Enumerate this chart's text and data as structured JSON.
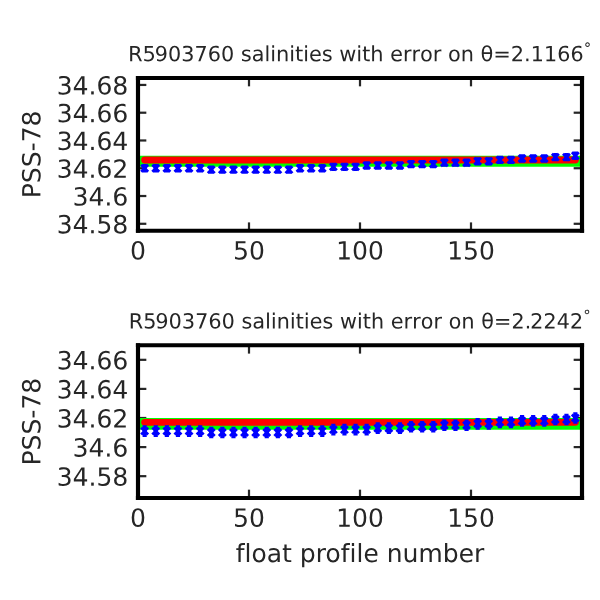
{
  "chart_data": [
    {
      "type": "scatter",
      "title": "R5903760 salinities with error on θ=2.1166$^{°}$",
      "ylabel": "PSS-78",
      "xlim": [
        0,
        200
      ],
      "ylim": [
        34.575,
        34.685
      ],
      "xticks": [
        0,
        50,
        100,
        150
      ],
      "yticks": [
        34.58,
        34.6,
        34.62,
        34.64,
        34.66,
        34.68
      ],
      "grid": false,
      "legend": false,
      "bands": [
        {
          "axis": "y",
          "from": 34.621,
          "to": 34.629,
          "color": "#00ff00"
        }
      ],
      "x": [
        3,
        8,
        13,
        18,
        23,
        28,
        33,
        38,
        43,
        48,
        53,
        58,
        63,
        68,
        73,
        78,
        83,
        88,
        93,
        98,
        103,
        108,
        113,
        118,
        123,
        128,
        133,
        138,
        143,
        148,
        153,
        158,
        163,
        168,
        173,
        178,
        183,
        188,
        193,
        197
      ],
      "series": [
        {
          "type": "line",
          "color": "#ff0000",
          "marker": "none",
          "values": [
            34.626,
            34.626,
            34.626,
            34.626,
            34.626,
            34.626,
            34.626,
            34.626,
            34.626,
            34.626,
            34.626,
            34.626,
            34.626,
            34.626,
            34.626,
            34.626,
            34.626,
            34.626,
            34.626,
            34.626,
            34.626,
            34.626,
            34.626,
            34.626,
            34.626,
            34.626,
            34.626,
            34.626,
            34.626,
            34.626,
            34.626,
            34.626,
            34.626,
            34.626,
            34.626,
            34.626,
            34.626,
            34.626,
            34.626,
            34.626
          ]
        },
        {
          "color": "#0000ff",
          "marker": "cross",
          "values": [
            34.62,
            34.62,
            34.62,
            34.62,
            34.62,
            34.62,
            34.619,
            34.619,
            34.619,
            34.619,
            34.619,
            34.619,
            34.619,
            34.619,
            34.62,
            34.62,
            34.62,
            34.621,
            34.621,
            34.621,
            34.622,
            34.622,
            34.622,
            34.622,
            34.623,
            34.623,
            34.623,
            34.624,
            34.624,
            34.624,
            34.625,
            34.625,
            34.626,
            34.626,
            34.627,
            34.627,
            34.627,
            34.628,
            34.628,
            34.629
          ],
          "errors": [
            0.003,
            0.003,
            0.003,
            0.003,
            0.003,
            0.003,
            0.003,
            0.003,
            0.003,
            0.003,
            0.003,
            0.003,
            0.003,
            0.003,
            0.003,
            0.003,
            0.003,
            0.003,
            0.003,
            0.003,
            0.003,
            0.003,
            0.003,
            0.003,
            0.003,
            0.003,
            0.003,
            0.003,
            0.003,
            0.003,
            0.003,
            0.003,
            0.003,
            0.003,
            0.003,
            0.003,
            0.003,
            0.003,
            0.003,
            0.003
          ]
        }
      ]
    },
    {
      "type": "scatter",
      "title": "R5903760 salinities with error on θ=2.2242$^{°}$",
      "ylabel": "PSS-78",
      "xlabel": "float profile number",
      "xlim": [
        0,
        200
      ],
      "ylim": [
        34.565,
        34.67
      ],
      "xticks": [
        0,
        50,
        100,
        150
      ],
      "yticks": [
        34.58,
        34.6,
        34.62,
        34.64,
        34.66
      ],
      "grid": false,
      "legend": false,
      "bands": [
        {
          "axis": "y",
          "from": 34.612,
          "to": 34.62,
          "color": "#00ff00"
        }
      ],
      "x": [
        3,
        8,
        13,
        18,
        23,
        28,
        33,
        38,
        43,
        48,
        53,
        58,
        63,
        68,
        73,
        78,
        83,
        88,
        93,
        98,
        103,
        108,
        113,
        118,
        123,
        128,
        133,
        138,
        143,
        148,
        153,
        158,
        163,
        168,
        173,
        178,
        183,
        188,
        193,
        197
      ],
      "series": [
        {
          "type": "line",
          "color": "#ff0000",
          "marker": "none",
          "values": [
            34.617,
            34.617,
            34.617,
            34.617,
            34.617,
            34.617,
            34.617,
            34.617,
            34.617,
            34.617,
            34.617,
            34.617,
            34.617,
            34.617,
            34.617,
            34.617,
            34.617,
            34.617,
            34.617,
            34.617,
            34.617,
            34.617,
            34.617,
            34.617,
            34.617,
            34.617,
            34.617,
            34.617,
            34.617,
            34.617,
            34.617,
            34.617,
            34.617,
            34.617,
            34.617,
            34.617,
            34.617,
            34.617,
            34.617,
            34.617
          ]
        },
        {
          "color": "#0000ff",
          "marker": "cross",
          "values": [
            34.611,
            34.611,
            34.611,
            34.611,
            34.611,
            34.611,
            34.61,
            34.61,
            34.61,
            34.61,
            34.61,
            34.61,
            34.61,
            34.61,
            34.611,
            34.611,
            34.611,
            34.612,
            34.612,
            34.612,
            34.612,
            34.613,
            34.613,
            34.613,
            34.614,
            34.614,
            34.614,
            34.615,
            34.615,
            34.615,
            34.616,
            34.616,
            34.617,
            34.617,
            34.618,
            34.618,
            34.618,
            34.619,
            34.619,
            34.62
          ],
          "errors": [
            0.004,
            0.004,
            0.004,
            0.004,
            0.004,
            0.004,
            0.004,
            0.004,
            0.004,
            0.004,
            0.004,
            0.004,
            0.004,
            0.004,
            0.004,
            0.004,
            0.004,
            0.004,
            0.004,
            0.004,
            0.004,
            0.004,
            0.004,
            0.004,
            0.004,
            0.004,
            0.004,
            0.004,
            0.004,
            0.004,
            0.004,
            0.004,
            0.004,
            0.004,
            0.004,
            0.004,
            0.004,
            0.004,
            0.004,
            0.004
          ]
        }
      ]
    }
  ]
}
